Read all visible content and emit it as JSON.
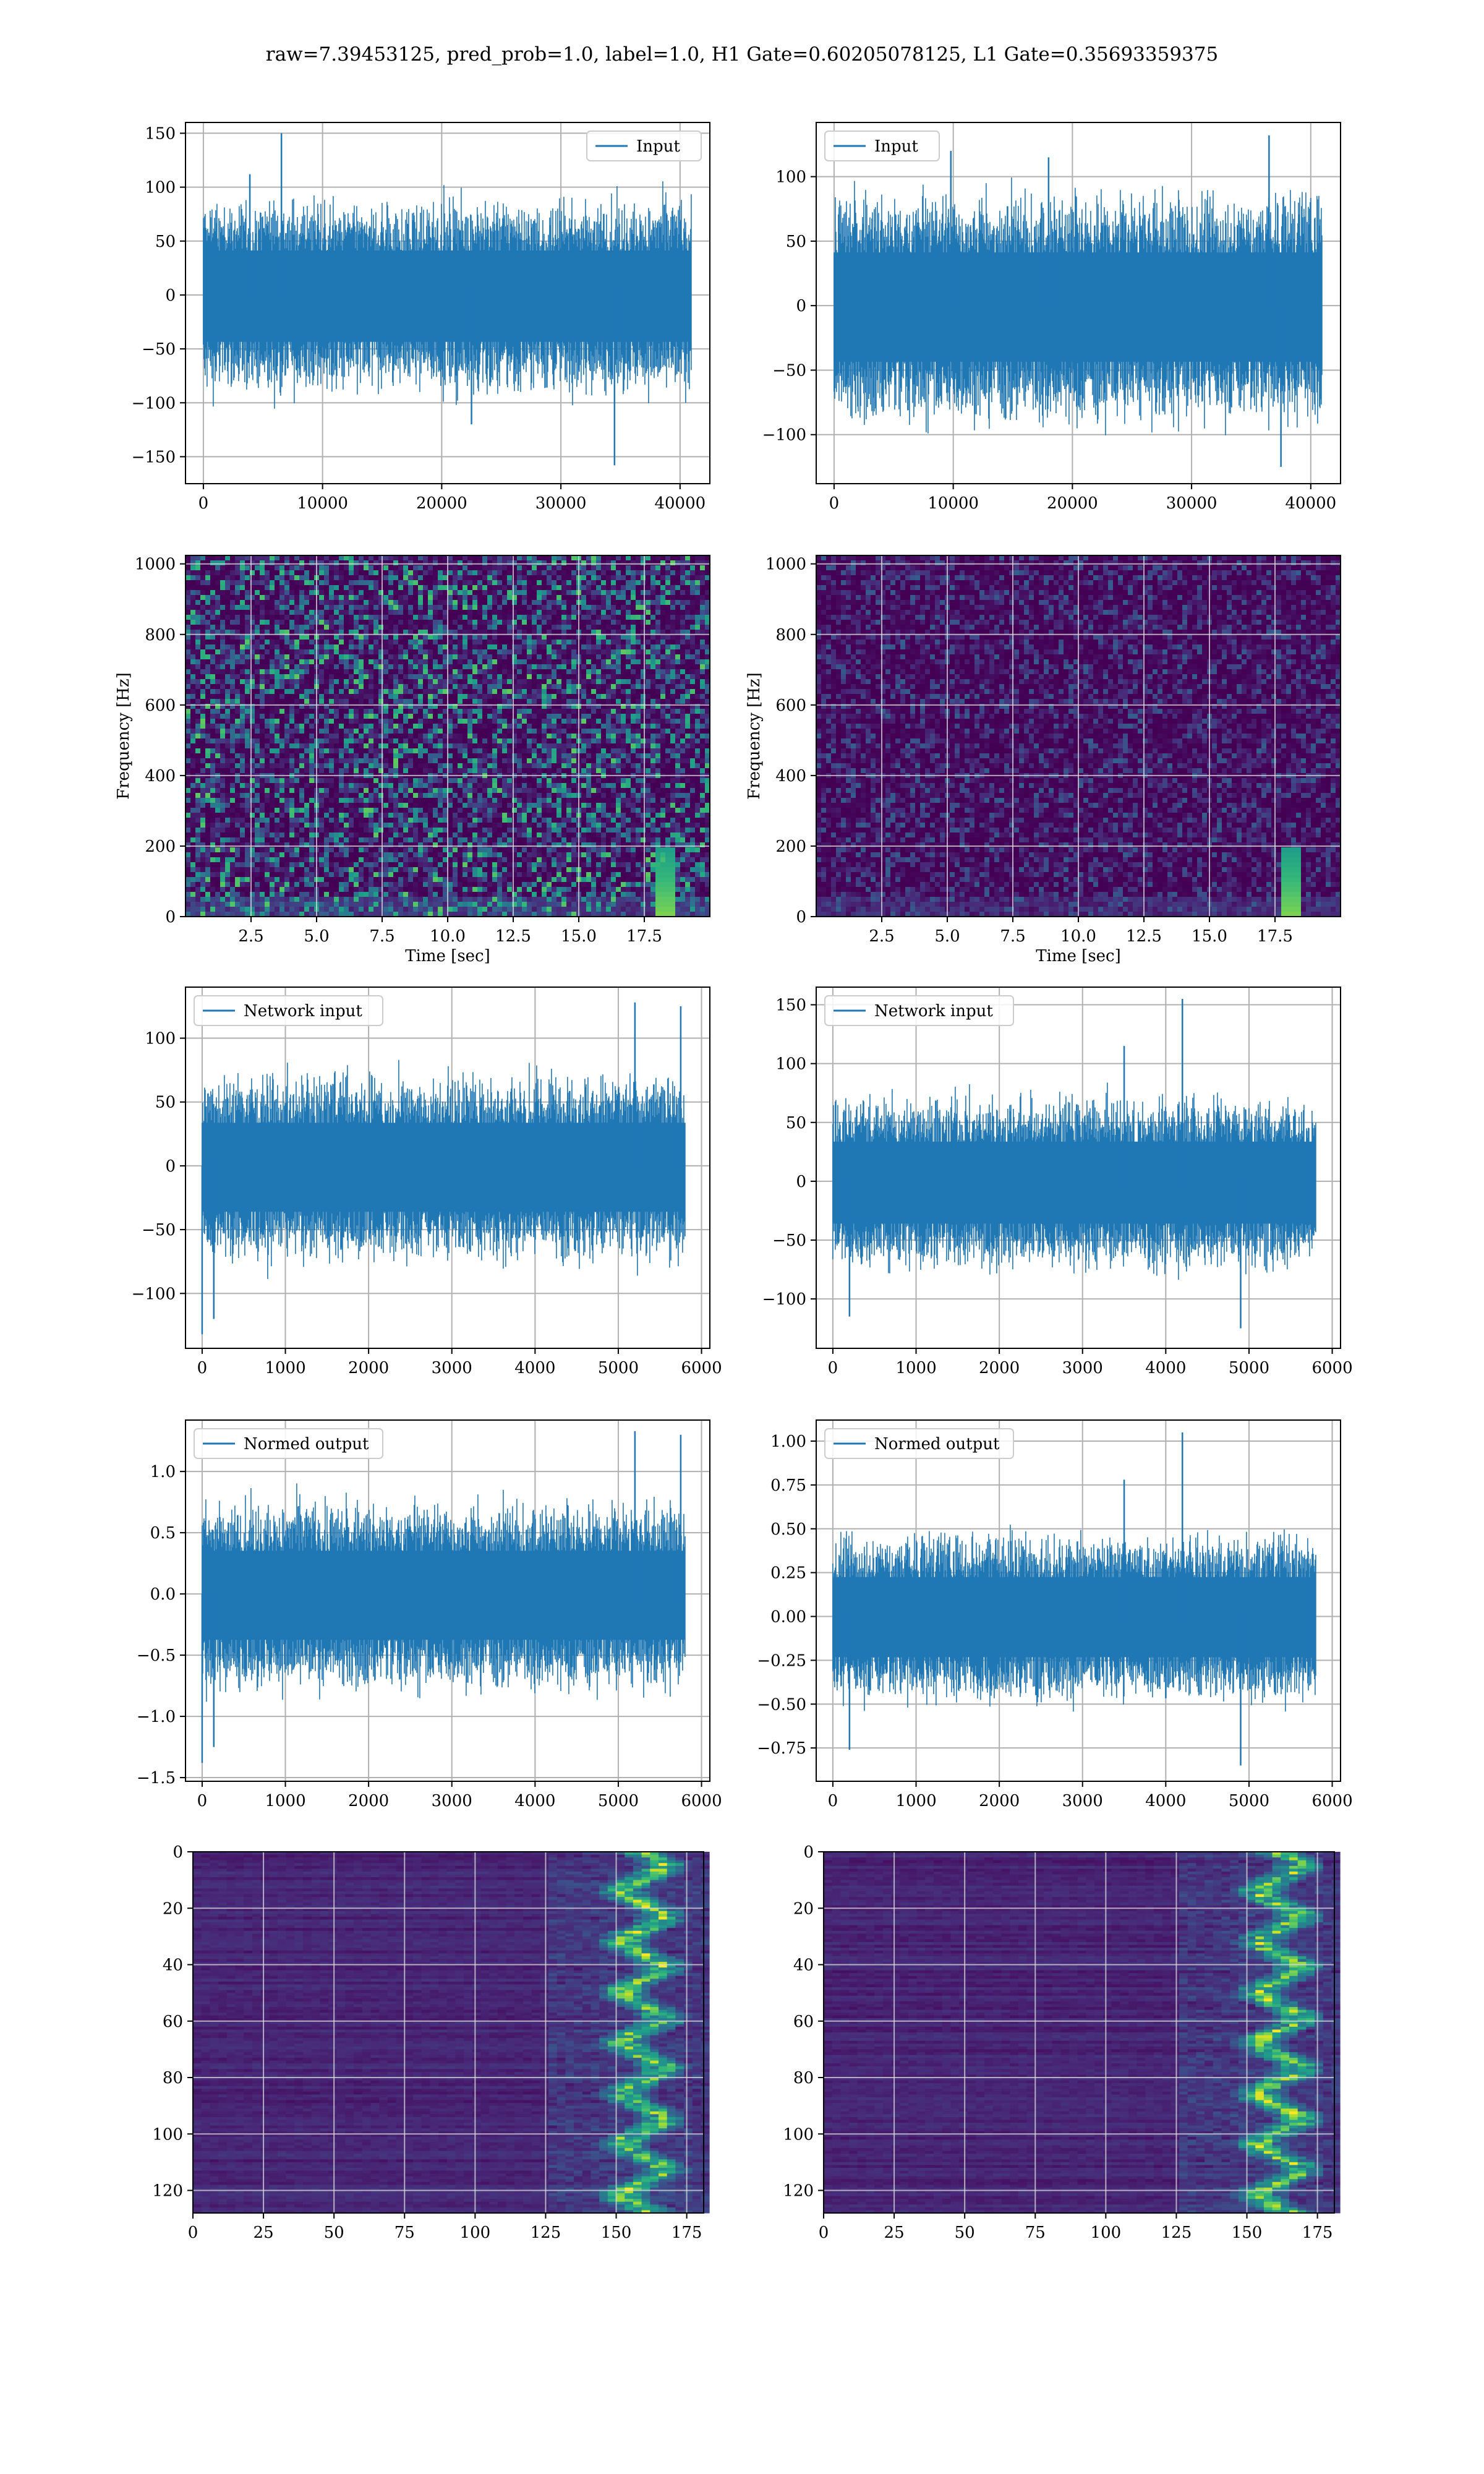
{
  "title": "raw=7.39453125, pred_prob=1.0, label=1.0, H1 Gate=0.60205078125, L1 Gate=0.35693359375",
  "colors": {
    "line": "#1f77b4",
    "grid": "#b0b0b0",
    "heat_low": "#440154",
    "heat_high": "#fde725"
  },
  "chart_data": [
    {
      "id": "row1-left",
      "type": "line",
      "legend": "Input",
      "legend_loc": "upper right",
      "xlim": [
        -1500,
        42500
      ],
      "ylim": [
        -175,
        160
      ],
      "xticks": [
        0,
        10000,
        20000,
        30000,
        40000
      ],
      "yticks": [
        -150,
        -100,
        -50,
        0,
        50,
        100,
        150
      ],
      "xticklabels": [
        "0",
        "10000",
        "20000",
        "30000",
        "40000"
      ],
      "yticklabels": [
        "−150",
        "−100",
        "−50",
        "0",
        "50",
        "100",
        "150"
      ],
      "series": [
        {
          "x_range": [
            0,
            40960
          ],
          "band": [
            -58,
            55
          ],
          "spikes": [
            [
              6550,
              150
            ],
            [
              34500,
              -158
            ],
            [
              22500,
              -120
            ],
            [
              3900,
              112
            ]
          ]
        }
      ],
      "grid": true
    },
    {
      "id": "row1-right",
      "type": "line",
      "legend": "Input",
      "legend_loc": "upper left",
      "xlim": [
        -1500,
        42500
      ],
      "ylim": [
        -138,
        142
      ],
      "xticks": [
        0,
        10000,
        20000,
        30000,
        40000
      ],
      "yticks": [
        -100,
        -50,
        0,
        50,
        100
      ],
      "xticklabels": [
        "0",
        "10000",
        "20000",
        "30000",
        "40000"
      ],
      "yticklabels": [
        "−100",
        "−50",
        "0",
        "50",
        "100"
      ],
      "series": [
        {
          "x_range": [
            0,
            40960
          ],
          "band": [
            -58,
            55
          ],
          "spikes": [
            [
              36500,
              132
            ],
            [
              37500,
              -125
            ],
            [
              9800,
              120
            ],
            [
              18000,
              115
            ]
          ]
        }
      ],
      "grid": true
    },
    {
      "id": "row2-left",
      "type": "heatmap",
      "xlabel": "Time [sec]",
      "ylabel": "Frequency [Hz]",
      "xlim": [
        0,
        20
      ],
      "ylim": [
        0,
        1024
      ],
      "xticks": [
        2.5,
        5.0,
        7.5,
        10.0,
        12.5,
        15.0,
        17.5
      ],
      "yticks": [
        0,
        200,
        400,
        600,
        800,
        1000
      ],
      "xticklabels": [
        "2.5",
        "5.0",
        "7.5",
        "10.0",
        "12.5",
        "15.0",
        "17.5"
      ],
      "yticklabels": [
        "0",
        "200",
        "400",
        "600",
        "800",
        "1000"
      ],
      "intensity": 0.75,
      "chirp_time": 18.2,
      "grid": true
    },
    {
      "id": "row2-right",
      "type": "heatmap",
      "xlabel": "Time [sec]",
      "ylabel": "Frequency [Hz]",
      "xlim": [
        0,
        20
      ],
      "ylim": [
        0,
        1024
      ],
      "xticks": [
        2.5,
        5.0,
        7.5,
        10.0,
        12.5,
        15.0,
        17.5
      ],
      "yticks": [
        0,
        200,
        400,
        600,
        800,
        1000
      ],
      "xticklabels": [
        "2.5",
        "5.0",
        "7.5",
        "10.0",
        "12.5",
        "15.0",
        "17.5"
      ],
      "yticklabels": [
        "0",
        "200",
        "400",
        "600",
        "800",
        "1000"
      ],
      "intensity": 0.3,
      "chirp_time": 18.0,
      "grid": true
    },
    {
      "id": "row3-left",
      "type": "line",
      "legend": "Network input",
      "legend_loc": "upper left",
      "xlim": [
        -200,
        6100
      ],
      "ylim": [
        -143,
        140
      ],
      "xticks": [
        0,
        1000,
        2000,
        3000,
        4000,
        5000,
        6000
      ],
      "yticks": [
        -100,
        -50,
        0,
        50,
        100
      ],
      "xticklabels": [
        "0",
        "1000",
        "2000",
        "3000",
        "4000",
        "5000",
        "6000"
      ],
      "yticklabels": [
        "−100",
        "−50",
        "0",
        "50",
        "100"
      ],
      "series": [
        {
          "x_range": [
            0,
            5800
          ],
          "band": [
            -48,
            45
          ],
          "spikes": [
            [
              5200,
              128
            ],
            [
              5750,
              125
            ],
            [
              0,
              -132
            ],
            [
              140,
              -120
            ]
          ]
        }
      ],
      "grid": true
    },
    {
      "id": "row3-right",
      "type": "line",
      "legend": "Network input",
      "legend_loc": "upper left",
      "xlim": [
        -200,
        6100
      ],
      "ylim": [
        -142,
        165
      ],
      "xticks": [
        0,
        1000,
        2000,
        3000,
        4000,
        5000,
        6000
      ],
      "yticks": [
        -100,
        -50,
        0,
        50,
        100,
        150
      ],
      "xticklabels": [
        "0",
        "1000",
        "2000",
        "3000",
        "4000",
        "5000",
        "6000"
      ],
      "yticklabels": [
        "−100",
        "−50",
        "0",
        "50",
        "100",
        "150"
      ],
      "series": [
        {
          "x_range": [
            0,
            5800
          ],
          "band": [
            -48,
            45
          ],
          "spikes": [
            [
              4200,
              155
            ],
            [
              3500,
              115
            ],
            [
              4900,
              -125
            ],
            [
              200,
              -115
            ]
          ]
        }
      ],
      "grid": true
    },
    {
      "id": "row4-left",
      "type": "line",
      "legend": "Normed output",
      "legend_loc": "upper left",
      "xlim": [
        -200,
        6100
      ],
      "ylim": [
        -1.53,
        1.42
      ],
      "xticks": [
        0,
        1000,
        2000,
        3000,
        4000,
        5000,
        6000
      ],
      "yticks": [
        -1.5,
        -1.0,
        -0.5,
        0.0,
        0.5,
        1.0
      ],
      "xticklabels": [
        "0",
        "1000",
        "2000",
        "3000",
        "4000",
        "5000",
        "6000"
      ],
      "yticklabels": [
        "−1.5",
        "−1.0",
        "−0.5",
        "0.0",
        "0.5",
        "1.0"
      ],
      "series": [
        {
          "x_range": [
            0,
            5800
          ],
          "band": [
            -0.5,
            0.47
          ],
          "spikes": [
            [
              5200,
              1.33
            ],
            [
              5750,
              1.3
            ],
            [
              0,
              -1.38
            ],
            [
              140,
              -1.25
            ]
          ]
        }
      ],
      "grid": true
    },
    {
      "id": "row4-right",
      "type": "line",
      "legend": "Normed output",
      "legend_loc": "upper left",
      "xlim": [
        -200,
        6100
      ],
      "ylim": [
        -0.94,
        1.12
      ],
      "xticks": [
        0,
        1000,
        2000,
        3000,
        4000,
        5000,
        6000
      ],
      "yticks": [
        -0.75,
        -0.5,
        -0.25,
        0.0,
        0.25,
        0.5,
        0.75,
        1.0
      ],
      "xticklabels": [
        "0",
        "1000",
        "2000",
        "3000",
        "4000",
        "5000",
        "6000"
      ],
      "yticklabels": [
        "−0.75",
        "−0.50",
        "−0.25",
        "0.00",
        "0.25",
        "0.50",
        "0.75",
        "1.00"
      ],
      "series": [
        {
          "x_range": [
            0,
            5800
          ],
          "band": [
            -0.31,
            0.3
          ],
          "spikes": [
            [
              4200,
              1.05
            ],
            [
              3500,
              0.78
            ],
            [
              4900,
              -0.85
            ],
            [
              200,
              -0.76
            ]
          ]
        }
      ],
      "grid": true
    },
    {
      "id": "row5-left",
      "type": "heatmap",
      "xlim": [
        0,
        181
      ],
      "ylim": [
        128,
        0
      ],
      "xticks": [
        0,
        25,
        50,
        75,
        100,
        125,
        150,
        175
      ],
      "yticks": [
        0,
        20,
        40,
        60,
        80,
        100,
        120
      ],
      "xticklabels": [
        "0",
        "25",
        "50",
        "75",
        "100",
        "125",
        "150",
        "175"
      ],
      "yticklabels": [
        "0",
        "20",
        "40",
        "60",
        "80",
        "100",
        "120"
      ],
      "active_cols": [
        125,
        181
      ],
      "peak_col": 158,
      "grid": true
    },
    {
      "id": "row5-right",
      "type": "heatmap",
      "xlim": [
        0,
        181
      ],
      "ylim": [
        128,
        0
      ],
      "xticks": [
        0,
        25,
        50,
        75,
        100,
        125,
        150,
        175
      ],
      "yticks": [
        0,
        20,
        40,
        60,
        80,
        100,
        120
      ],
      "xticklabels": [
        "0",
        "25",
        "50",
        "75",
        "100",
        "125",
        "150",
        "175"
      ],
      "yticklabels": [
        "0",
        "20",
        "40",
        "60",
        "80",
        "100",
        "120"
      ],
      "active_cols": [
        125,
        181
      ],
      "peak_col": 160,
      "grid": true
    }
  ]
}
